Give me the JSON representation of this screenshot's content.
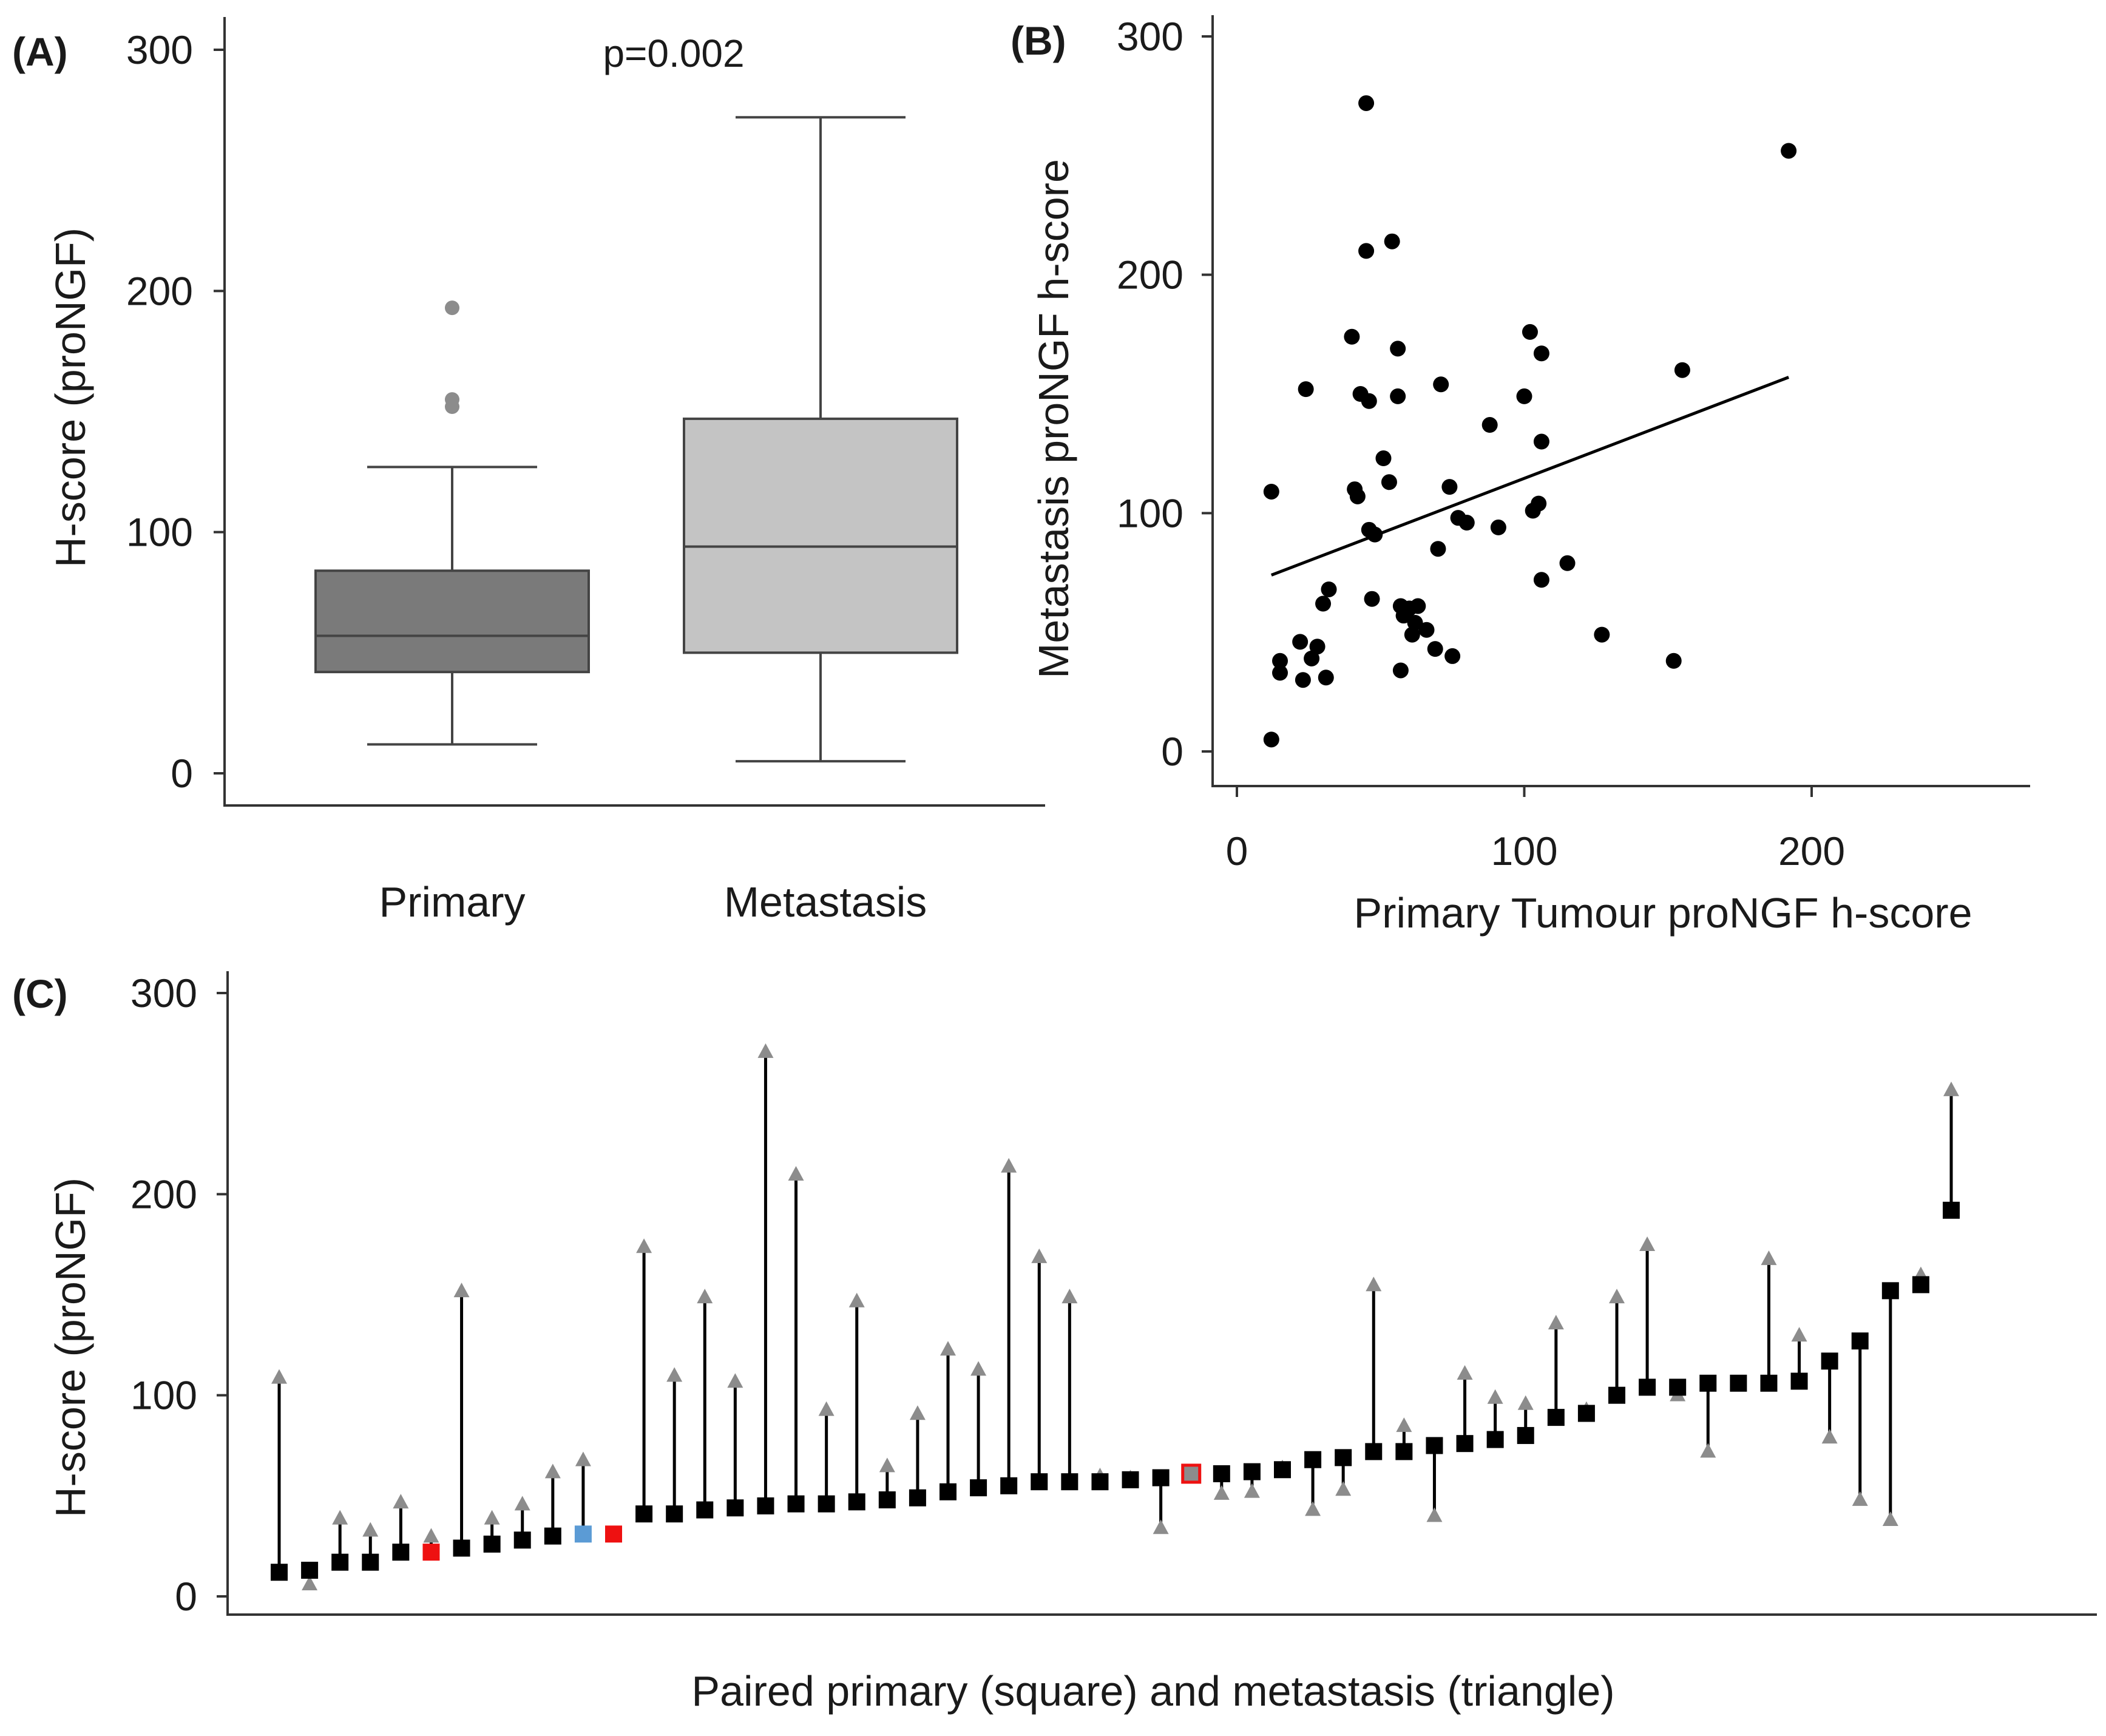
{
  "chart_data": [
    {
      "panel": "(A)",
      "type": "box",
      "ylabel": "H-score (proNGF)",
      "xlabel": "",
      "ylim": [
        -10,
        310
      ],
      "yticks": [
        0,
        100,
        200,
        300
      ],
      "annotation": "p=0.002",
      "categories": [
        "Primary",
        "Metastasis"
      ],
      "boxes": [
        {
          "name": "Primary",
          "min": 12,
          "q1": 42,
          "median": 57,
          "q3": 84,
          "max": 127,
          "outliers": [
            152,
            155,
            193
          ],
          "color": "#7a7a7a"
        },
        {
          "name": "Metastasis",
          "min": 5,
          "q1": 50,
          "median": 94,
          "q3": 147,
          "max": 272,
          "outliers": [],
          "color": "#c4c4c4"
        }
      ]
    },
    {
      "panel": "(B)",
      "type": "scatter",
      "xlabel": "Primary Tumour proNGF h-score",
      "ylabel": "Metastasis proNGF h-score",
      "xlim": [
        -10,
        275
      ],
      "ylim": [
        -10,
        308
      ],
      "xticks": [
        0,
        100,
        200
      ],
      "yticks": [
        0,
        100,
        200,
        300
      ],
      "points": [
        [
          12,
          5
        ],
        [
          12,
          109
        ],
        [
          15,
          38
        ],
        [
          15,
          33
        ],
        [
          22,
          46
        ],
        [
          23,
          30
        ],
        [
          24,
          152
        ],
        [
          26,
          39
        ],
        [
          28,
          44
        ],
        [
          30,
          62
        ],
        [
          31,
          31
        ],
        [
          32,
          68
        ],
        [
          40,
          174
        ],
        [
          41,
          110
        ],
        [
          42,
          107
        ],
        [
          43,
          150
        ],
        [
          45,
          272
        ],
        [
          45,
          210
        ],
        [
          46,
          147
        ],
        [
          46,
          93
        ],
        [
          47,
          64
        ],
        [
          48,
          91
        ],
        [
          51,
          123
        ],
        [
          53,
          113
        ],
        [
          54,
          214
        ],
        [
          56,
          149
        ],
        [
          56,
          169
        ],
        [
          57,
          61
        ],
        [
          57,
          34
        ],
        [
          58,
          57
        ],
        [
          60,
          60
        ],
        [
          61,
          49
        ],
        [
          62,
          54
        ],
        [
          63,
          61
        ],
        [
          66,
          51
        ],
        [
          69,
          43
        ],
        [
          70,
          85
        ],
        [
          71,
          154
        ],
        [
          74,
          111
        ],
        [
          75,
          40
        ],
        [
          77,
          98
        ],
        [
          80,
          96
        ],
        [
          88,
          137
        ],
        [
          91,
          94
        ],
        [
          100,
          149
        ],
        [
          102,
          176
        ],
        [
          103,
          101
        ],
        [
          105,
          104
        ],
        [
          106,
          167
        ],
        [
          106,
          72
        ],
        [
          106,
          130
        ],
        [
          115,
          79
        ],
        [
          127,
          49
        ],
        [
          152,
          38
        ],
        [
          155,
          160
        ],
        [
          192,
          252
        ]
      ],
      "regression_line": {
        "x": [
          12,
          192
        ],
        "y": [
          74,
          157
        ]
      }
    },
    {
      "panel": "(C)",
      "type": "paired",
      "xlabel": "Paired primary (square) and metastasis (triangle)",
      "ylabel": "H-score (proNGF)",
      "ylim": [
        -10,
        310
      ],
      "yticks": [
        0,
        100,
        200,
        300
      ],
      "colors": {
        "primary": "#000000",
        "metastasis": "#8c8c8c",
        "highlight_red": "#ee1111",
        "highlight_blue": "#5b9bd5"
      },
      "pairs": [
        {
          "primary": 12,
          "metastasis": 109
        },
        {
          "primary": 13,
          "metastasis": 7
        },
        {
          "primary": 17,
          "metastasis": 39
        },
        {
          "primary": 17,
          "metastasis": 33
        },
        {
          "primary": 22,
          "metastasis": 47
        },
        {
          "primary": 22,
          "metastasis": 30,
          "marker": "red"
        },
        {
          "primary": 24,
          "metastasis": 152
        },
        {
          "primary": 26,
          "metastasis": 39
        },
        {
          "primary": 28,
          "metastasis": 46
        },
        {
          "primary": 30,
          "metastasis": 62
        },
        {
          "primary": 31,
          "metastasis": 68,
          "marker": "blue"
        },
        {
          "primary": 31,
          "marker": "red"
        },
        {
          "primary": 41,
          "metastasis": 174
        },
        {
          "primary": 41,
          "metastasis": 110
        },
        {
          "primary": 43,
          "metastasis": 149
        },
        {
          "primary": 44,
          "metastasis": 107
        },
        {
          "primary": 45,
          "metastasis": 271
        },
        {
          "primary": 46,
          "metastasis": 210
        },
        {
          "primary": 46,
          "metastasis": 93
        },
        {
          "primary": 47,
          "metastasis": 147
        },
        {
          "primary": 48,
          "metastasis": 65
        },
        {
          "primary": 49,
          "metastasis": 91
        },
        {
          "primary": 52,
          "metastasis": 123
        },
        {
          "primary": 54,
          "metastasis": 113
        },
        {
          "primary": 55,
          "metastasis": 214
        },
        {
          "primary": 57,
          "metastasis": 169
        },
        {
          "primary": 57,
          "metastasis": 149
        },
        {
          "primary": 57,
          "metastasis": 60
        },
        {
          "primary": 58,
          "metastasis": 59
        },
        {
          "primary": 59,
          "metastasis": 35
        },
        {
          "primary": 61,
          "metastasis": 61,
          "marker": "red-outline"
        },
        {
          "primary": 61,
          "metastasis": 52
        },
        {
          "primary": 62,
          "metastasis": 53
        },
        {
          "primary": 63,
          "metastasis": 64
        },
        {
          "primary": 68,
          "metastasis": 44
        },
        {
          "primary": 69,
          "metastasis": 54
        },
        {
          "primary": 72,
          "metastasis": 155
        },
        {
          "primary": 72,
          "metastasis": 85
        },
        {
          "primary": 75,
          "metastasis": 41
        },
        {
          "primary": 76,
          "metastasis": 111
        },
        {
          "primary": 78,
          "metastasis": 99
        },
        {
          "primary": 80,
          "metastasis": 96
        },
        {
          "primary": 89,
          "metastasis": 136
        },
        {
          "primary": 91,
          "metastasis": 93
        },
        {
          "primary": 100,
          "metastasis": 149
        },
        {
          "primary": 104,
          "metastasis": 175
        },
        {
          "primary": 104,
          "metastasis": 101
        },
        {
          "primary": 106,
          "metastasis": 73
        },
        {
          "primary": 106,
          "metastasis": 106
        },
        {
          "primary": 106,
          "metastasis": 168
        },
        {
          "primary": 107,
          "metastasis": 130
        },
        {
          "primary": 117,
          "metastasis": 80
        },
        {
          "primary": 127,
          "metastasis": 49
        },
        {
          "primary": 152,
          "metastasis": 39
        },
        {
          "primary": 155,
          "metastasis": 160
        },
        {
          "primary": 192,
          "metastasis": 252
        }
      ]
    }
  ]
}
